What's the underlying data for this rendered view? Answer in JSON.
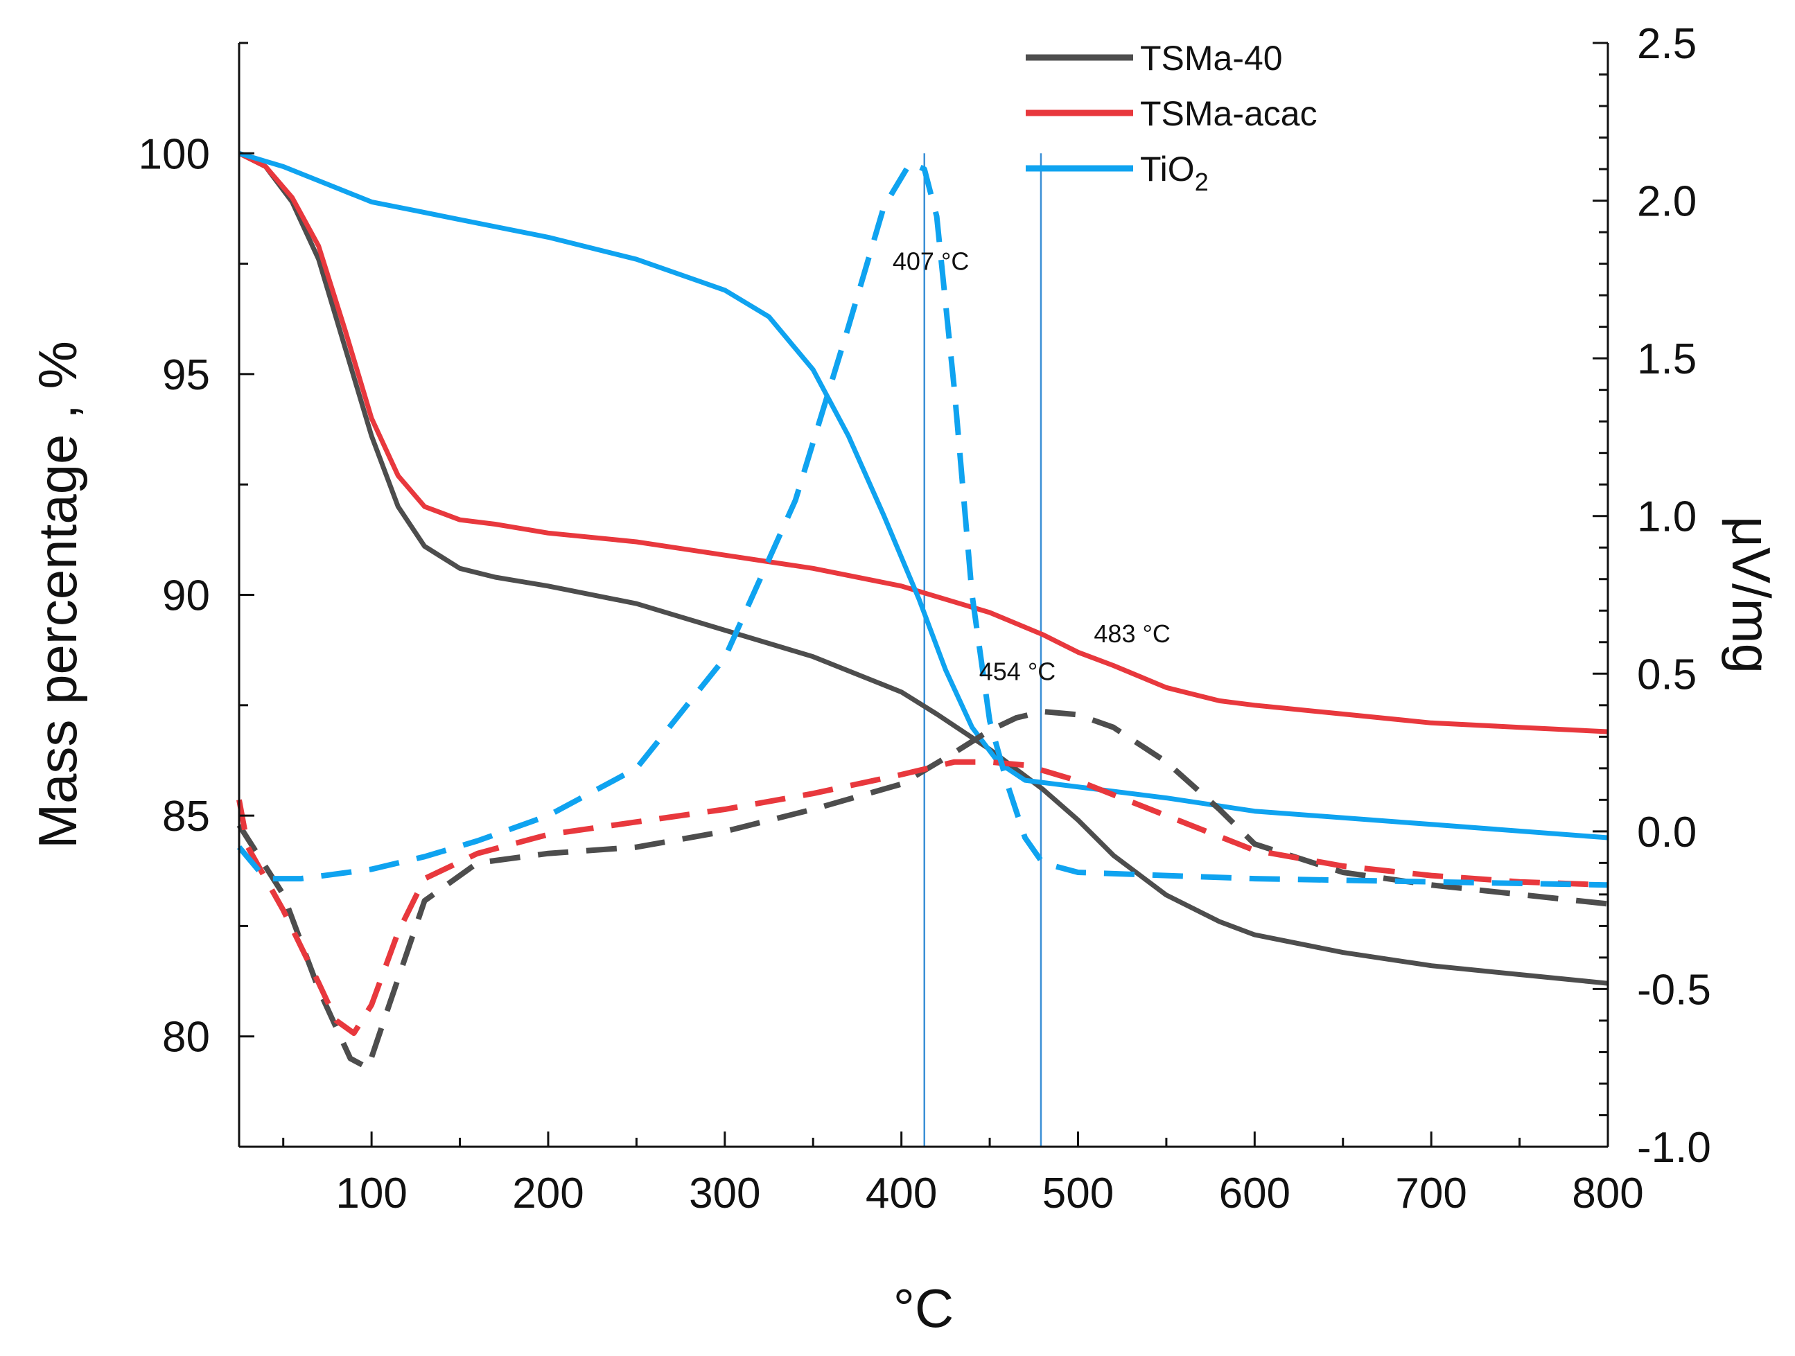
{
  "chart_data": {
    "type": "line",
    "xlabel": "°C",
    "ylabel_left": "Mass percentage ,  %",
    "ylabel_right": "μV/mg",
    "xlim": [
      25,
      800
    ],
    "ylim_left": [
      77.5,
      102.5
    ],
    "ylim_right": [
      -1.0,
      2.5
    ],
    "x_ticks": [
      100,
      200,
      300,
      400,
      500,
      600,
      700,
      800
    ],
    "y_left_ticks": [
      80,
      85,
      90,
      95,
      100
    ],
    "y_right_ticks": [
      "-1.0",
      "-0.5",
      "0.0",
      "0.5",
      "1.0",
      "1.5",
      "2.0",
      "2.5"
    ],
    "legend": [
      {
        "name": "TSMa-40",
        "color": "#4d4d4d"
      },
      {
        "name": "TSMa-acac",
        "color": "#e8383d"
      },
      {
        "name": "TiO",
        "subscript": "2",
        "color": "#0fa3f0"
      }
    ],
    "annotations": [
      {
        "text": "407 °C",
        "x": 395,
        "y_right": 1.78
      },
      {
        "text": "483 °C",
        "x": 509,
        "y_right": 0.6
      },
      {
        "text": "454 °C",
        "x": 444,
        "y_right": 0.48
      }
    ],
    "reference_lines": [
      413,
      479
    ],
    "series": [
      {
        "name": "TSMa-40",
        "axis": "left",
        "style": "solid",
        "color": "#4d4d4d",
        "x": [
          25,
          40,
          55,
          70,
          85,
          100,
          115,
          130,
          150,
          170,
          200,
          250,
          300,
          350,
          400,
          420,
          450,
          480,
          500,
          520,
          550,
          580,
          600,
          650,
          700,
          750,
          800
        ],
        "y": [
          100,
          99.7,
          98.9,
          97.6,
          95.6,
          93.6,
          92.0,
          91.1,
          90.6,
          90.4,
          90.2,
          89.8,
          89.2,
          88.6,
          87.8,
          87.3,
          86.5,
          85.6,
          84.9,
          84.1,
          83.2,
          82.6,
          82.3,
          81.9,
          81.6,
          81.4,
          81.2
        ]
      },
      {
        "name": "TSMa-acac",
        "axis": "left",
        "style": "solid",
        "color": "#e8383d",
        "x": [
          25,
          40,
          55,
          70,
          85,
          100,
          115,
          130,
          150,
          170,
          200,
          250,
          300,
          350,
          400,
          450,
          480,
          500,
          520,
          550,
          580,
          600,
          650,
          700,
          750,
          800
        ],
        "y": [
          100,
          99.7,
          99.0,
          97.9,
          96.0,
          94.0,
          92.7,
          92.0,
          91.7,
          91.6,
          91.4,
          91.2,
          90.9,
          90.6,
          90.2,
          89.6,
          89.1,
          88.7,
          88.4,
          87.9,
          87.6,
          87.5,
          87.3,
          87.1,
          87.0,
          86.9
        ]
      },
      {
        "name": "TiO2",
        "axis": "left",
        "style": "solid",
        "color": "#0fa3f0",
        "x": [
          25,
          50,
          75,
          100,
          125,
          150,
          200,
          250,
          300,
          325,
          350,
          370,
          390,
          410,
          425,
          440,
          455,
          470,
          490,
          550,
          600,
          700,
          800
        ],
        "y": [
          100,
          99.7,
          99.3,
          98.9,
          98.7,
          98.5,
          98.1,
          97.6,
          96.9,
          96.3,
          95.1,
          93.6,
          91.8,
          89.9,
          88.3,
          87.0,
          86.2,
          85.8,
          85.7,
          85.4,
          85.1,
          84.8,
          84.5
        ]
      },
      {
        "name": "TSMa-40 DTA",
        "axis": "right",
        "style": "dashed",
        "color": "#4d4d4d",
        "x": [
          25,
          50,
          70,
          88,
          98,
          110,
          130,
          160,
          200,
          250,
          300,
          350,
          400,
          430,
          450,
          465,
          480,
          500,
          520,
          550,
          580,
          600,
          650,
          700,
          750,
          800
        ],
        "y": [
          0.02,
          -0.2,
          -0.5,
          -0.72,
          -0.75,
          -0.55,
          -0.22,
          -0.1,
          -0.07,
          -0.05,
          0.0,
          0.07,
          0.15,
          0.25,
          0.32,
          0.36,
          0.38,
          0.37,
          0.33,
          0.22,
          0.07,
          -0.04,
          -0.13,
          -0.17,
          -0.2,
          -0.23
        ]
      },
      {
        "name": "TSMa-acac DTA",
        "axis": "right",
        "style": "dashed",
        "color": "#e8383d",
        "x": [
          25,
          30,
          50,
          70,
          80,
          90,
          100,
          115,
          130,
          160,
          200,
          250,
          300,
          350,
          400,
          430,
          450,
          470,
          500,
          550,
          600,
          650,
          700,
          750,
          800
        ],
        "y": [
          0.1,
          -0.05,
          -0.25,
          -0.48,
          -0.6,
          -0.64,
          -0.55,
          -0.32,
          -0.15,
          -0.07,
          -0.01,
          0.03,
          0.07,
          0.12,
          0.18,
          0.22,
          0.22,
          0.21,
          0.16,
          0.05,
          -0.06,
          -0.11,
          -0.14,
          -0.16,
          -0.17
        ]
      },
      {
        "name": "TiO2 DTA",
        "axis": "right",
        "style": "dashed",
        "color": "#0fa3f0",
        "x": [
          25,
          40,
          60,
          100,
          130,
          160,
          200,
          250,
          300,
          340,
          370,
          390,
          405,
          413,
          420,
          430,
          440,
          450,
          460,
          470,
          480,
          500,
          550,
          600,
          700,
          800
        ],
        "y": [
          -0.05,
          -0.15,
          -0.15,
          -0.12,
          -0.08,
          -0.03,
          0.05,
          0.2,
          0.55,
          1.05,
          1.6,
          1.98,
          2.12,
          2.1,
          1.95,
          1.4,
          0.75,
          0.35,
          0.15,
          -0.02,
          -0.1,
          -0.13,
          -0.14,
          -0.15,
          -0.16,
          -0.17
        ]
      }
    ]
  }
}
